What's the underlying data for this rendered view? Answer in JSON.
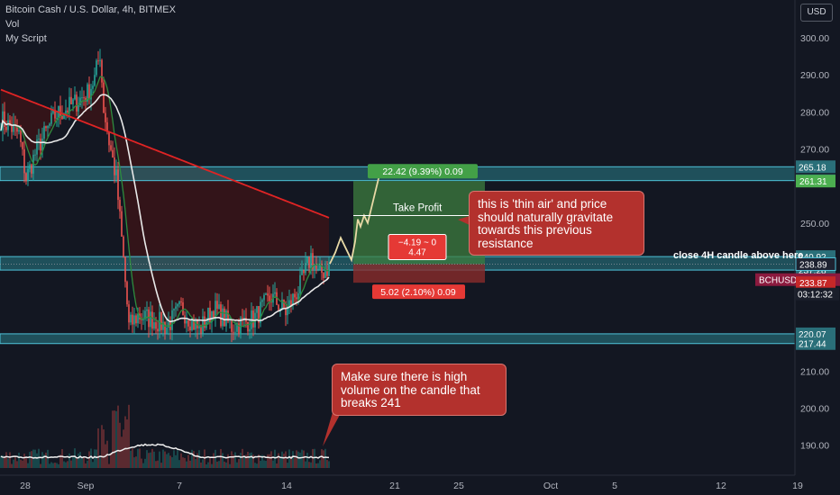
{
  "header": {
    "symbol_line": "Bitcoin Cash / U.S. Dollar, 4h, BITMEX",
    "indicator_1": "Vol",
    "indicator_2": "My Script"
  },
  "currency_button": "USD",
  "colors": {
    "background": "#131722",
    "up_candle": "#26a69a",
    "down_candle": "#ef5350",
    "zone_fill": "#2a7f8a",
    "ma_fast": "#2e8b3e",
    "ma_mid": "#e9e9e9",
    "ma_slow": "#e02424",
    "target_zone": "#3e7d3f",
    "stop_zone": "#8a2c2c",
    "projection": "#e8d9a6"
  },
  "chart_data": {
    "type": "candlestick",
    "title": "Bitcoin Cash / U.S. Dollar, 4h, BITMEX",
    "ylim": [
      186.0,
      303.5
    ],
    "price_ticks": [
      300.0,
      290.0,
      280.0,
      270.0,
      250.0,
      210.0,
      200.0,
      190.0
    ],
    "x_ticks": [
      "28",
      "Sep",
      "7",
      "14",
      "21",
      "25",
      "Oct",
      "5",
      "12",
      "19"
    ],
    "zones": [
      {
        "top": 265.18,
        "bottom": 261.44,
        "top_label": "265.18",
        "bottom_label": "261.44"
      },
      {
        "top": 240.92,
        "bottom": 237.28,
        "top_label": "240.92",
        "bottom_label": "237.28"
      },
      {
        "top": 220.07,
        "bottom": 217.44,
        "top_label": "220.07",
        "bottom_label": "217.44"
      }
    ],
    "price_labels": [
      {
        "value": 261.31,
        "text": "261.31",
        "color": "#4caf50"
      },
      {
        "value": 238.89,
        "text": "238.89",
        "color": "#1e2230"
      },
      {
        "value": 234.7,
        "text": "BCHUSD · 234.70",
        "color": "#8b1a3e"
      },
      {
        "value": 233.87,
        "text": "233.87",
        "color": "#c62828"
      }
    ],
    "countdown": "03:12:32",
    "position": {
      "entry": 238.89,
      "target": 261.31,
      "stop": 233.87,
      "target_label": "22.42 (9.39%) 0.09",
      "stop_label": "5.02 (2.10%) 0.09",
      "ratio_top": "−4.19 ~ 0",
      "ratio_bottom": "4.47"
    },
    "take_profit_label": "Take Profit",
    "take_profit_level": 252.0,
    "annotation_close": "close 4H candle above here"
  },
  "callouts": {
    "thin_air": "this is 'thin air' and price should naturally gravitate towards this previous resistance",
    "volume": "Make sure there is high volume on the candle that breaks 241"
  }
}
